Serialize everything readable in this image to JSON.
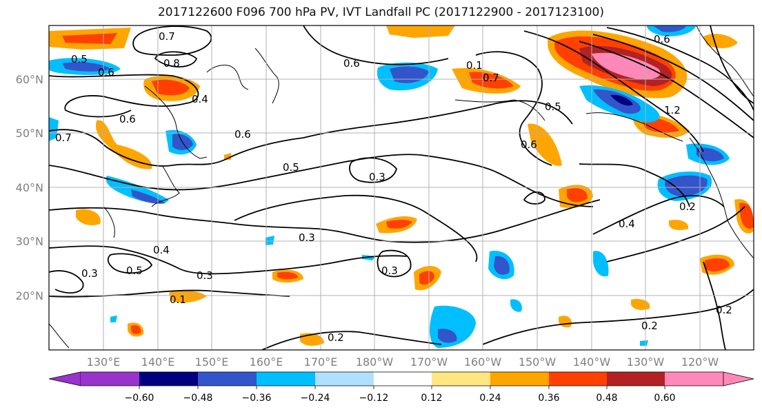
{
  "title": "2017122600 F096 700 hPa PV, IVT Landfall PC (2017122900 - 2017123100)",
  "map": {
    "lat_labels": [
      "60°N",
      "50°N",
      "40°N",
      "30°N",
      "20°N"
    ],
    "lon_labels": [
      "130°E",
      "140°E",
      "150°E",
      "160°E",
      "170°E",
      "180°W",
      "170°W",
      "160°W",
      "150°W",
      "140°W",
      "130°W",
      "120°W"
    ],
    "contour_labels": [
      "0.7",
      "0.8",
      "0.5",
      "0.6",
      "0.4",
      "0.6",
      "0.6",
      "0.5",
      "0.3",
      "0.3",
      "0.4",
      "0.5",
      "0.3",
      "0.3",
      "0.2",
      "0.2",
      "0.4",
      "0.2",
      "0.2",
      "0.5",
      "0.6",
      "0.7",
      "0.1",
      "0.3",
      "0.1",
      "0.7",
      "0.6",
      "0.6",
      "1.2"
    ]
  },
  "colorbar": {
    "ticks": [
      "−0.60",
      "−0.48",
      "−0.36",
      "−0.24",
      "−0.12",
      "0.12",
      "0.24",
      "0.36",
      "0.48",
      "0.60"
    ],
    "colors": [
      "#9933cc",
      "#000080",
      "#3355cc",
      "#00bfff",
      "#b0e0ff",
      "#ffffff",
      "#ffe680",
      "#ffa500",
      "#ff4000",
      "#b22222",
      "#ff88b8"
    ]
  }
}
